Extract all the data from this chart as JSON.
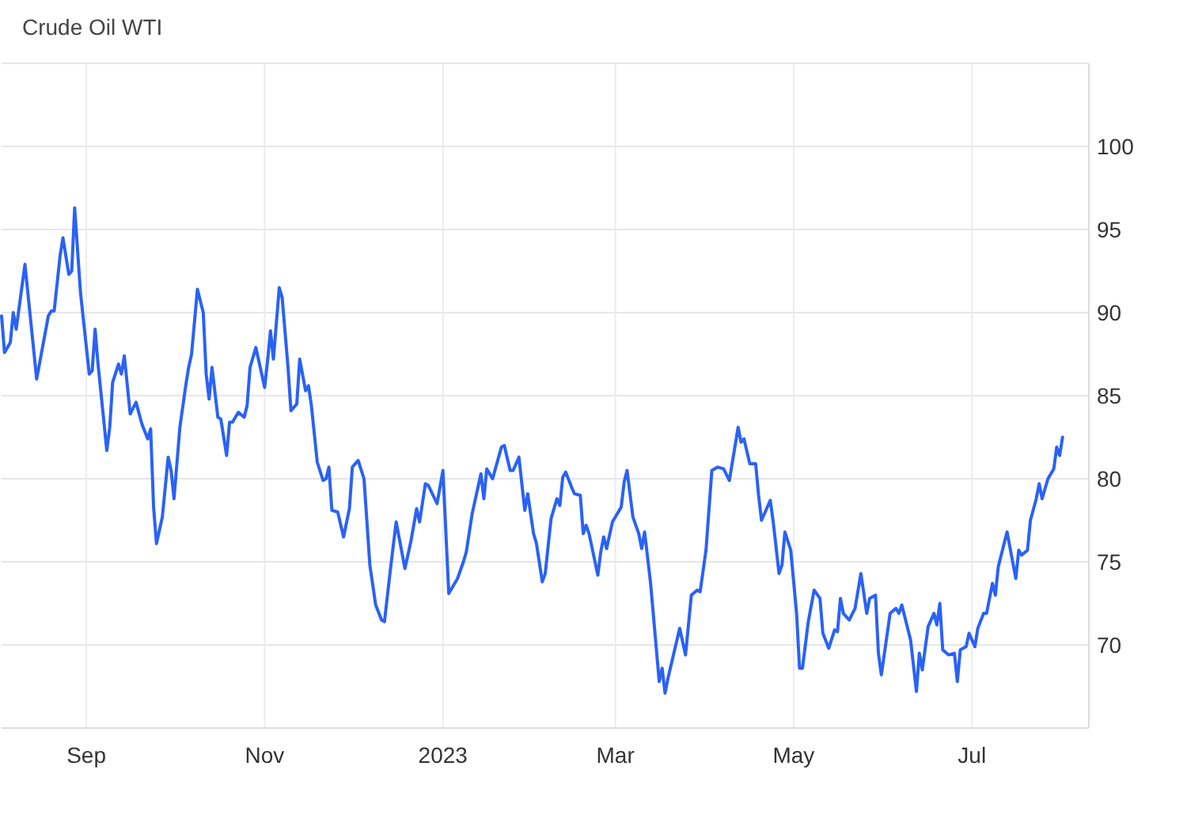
{
  "chart_data": {
    "type": "line",
    "title": "Crude Oil WTI",
    "x": [
      "2022-08-03",
      "2022-08-04",
      "2022-08-06",
      "2022-08-07",
      "2022-08-08",
      "2022-08-11",
      "2022-08-15",
      "2022-08-19",
      "2022-08-20",
      "2022-08-21",
      "2022-08-23",
      "2022-08-24",
      "2022-08-26",
      "2022-08-27",
      "2022-08-28",
      "2022-08-30",
      "2022-09-02",
      "2022-09-03",
      "2022-09-04",
      "2022-09-05",
      "2022-09-08",
      "2022-09-09",
      "2022-09-10",
      "2022-09-12",
      "2022-09-13",
      "2022-09-14",
      "2022-09-16",
      "2022-09-18",
      "2022-09-20",
      "2022-09-22",
      "2022-09-23",
      "2022-09-24",
      "2022-09-25",
      "2022-09-27",
      "2022-09-29",
      "2022-09-30",
      "2022-10-01",
      "2022-10-03",
      "2022-10-05",
      "2022-10-06",
      "2022-10-07",
      "2022-10-09",
      "2022-10-11",
      "2022-10-12",
      "2022-10-13",
      "2022-10-14",
      "2022-10-16",
      "2022-10-17",
      "2022-10-19",
      "2022-10-20",
      "2022-10-21",
      "2022-10-23",
      "2022-10-25",
      "2022-10-26",
      "2022-10-27",
      "2022-10-29",
      "2022-11-01",
      "2022-11-02",
      "2022-11-03",
      "2022-11-04",
      "2022-11-06",
      "2022-11-07",
      "2022-11-09",
      "2022-11-10",
      "2022-11-12",
      "2022-11-13",
      "2022-11-15",
      "2022-11-16",
      "2022-11-17",
      "2022-11-19",
      "2022-11-21",
      "2022-11-22",
      "2022-11-23",
      "2022-11-24",
      "2022-11-26",
      "2022-11-28",
      "2022-11-30",
      "2022-12-01",
      "2022-12-03",
      "2022-12-05",
      "2022-12-07",
      "2022-12-09",
      "2022-12-11",
      "2022-12-12",
      "2022-12-14",
      "2022-12-16",
      "2022-12-19",
      "2022-12-21",
      "2022-12-23",
      "2022-12-24",
      "2022-12-26",
      "2022-12-27",
      "2022-12-30",
      "2023-01-01",
      "2023-01-03",
      "2023-01-06",
      "2023-01-08",
      "2023-01-09",
      "2023-01-11",
      "2023-01-14",
      "2023-01-15",
      "2023-01-16",
      "2023-01-18",
      "2023-01-21",
      "2023-01-22",
      "2023-01-24",
      "2023-01-25",
      "2023-01-27",
      "2023-01-29",
      "2023-01-30",
      "2023-02-01",
      "2023-02-02",
      "2023-02-04",
      "2023-02-05",
      "2023-02-07",
      "2023-02-09",
      "2023-02-10",
      "2023-02-11",
      "2023-02-12",
      "2023-02-14",
      "2023-02-15",
      "2023-02-17",
      "2023-02-18",
      "2023-02-19",
      "2023-02-20",
      "2023-02-23",
      "2023-02-24",
      "2023-02-25",
      "2023-02-26",
      "2023-02-28",
      "2023-03-03",
      "2023-03-04",
      "2023-03-05",
      "2023-03-07",
      "2023-03-09",
      "2023-03-10",
      "2023-03-11",
      "2023-03-13",
      "2023-03-16",
      "2023-03-17",
      "2023-03-18",
      "2023-03-19",
      "2023-03-23",
      "2023-03-25",
      "2023-03-27",
      "2023-03-29",
      "2023-03-30",
      "2023-04-01",
      "2023-04-03",
      "2023-04-05",
      "2023-04-07",
      "2023-04-09",
      "2023-04-12",
      "2023-04-13",
      "2023-04-14",
      "2023-04-16",
      "2023-04-18",
      "2023-04-19",
      "2023-04-20",
      "2023-04-23",
      "2023-04-24",
      "2023-04-26",
      "2023-04-27",
      "2023-04-28",
      "2023-04-30",
      "2023-05-02",
      "2023-05-03",
      "2023-05-04",
      "2023-05-06",
      "2023-05-08",
      "2023-05-10",
      "2023-05-11",
      "2023-05-13",
      "2023-05-15",
      "2023-05-16",
      "2023-05-17",
      "2023-05-18",
      "2023-05-20",
      "2023-05-22",
      "2023-05-24",
      "2023-05-26",
      "2023-05-27",
      "2023-05-29",
      "2023-05-30",
      "2023-05-31",
      "2023-06-03",
      "2023-06-05",
      "2023-06-06",
      "2023-06-07",
      "2023-06-10",
      "2023-06-12",
      "2023-06-13",
      "2023-06-14",
      "2023-06-16",
      "2023-06-18",
      "2023-06-19",
      "2023-06-20",
      "2023-06-21",
      "2023-06-23",
      "2023-06-25",
      "2023-06-26",
      "2023-06-27",
      "2023-06-29",
      "2023-06-30",
      "2023-07-02",
      "2023-07-03",
      "2023-07-05",
      "2023-07-06",
      "2023-07-08",
      "2023-07-09",
      "2023-07-10",
      "2023-07-11",
      "2023-07-13",
      "2023-07-16",
      "2023-07-17",
      "2023-07-18",
      "2023-07-20",
      "2023-07-21",
      "2023-07-23",
      "2023-07-24",
      "2023-07-25",
      "2023-07-27",
      "2023-07-29",
      "2023-07-30",
      "2023-07-31",
      "2023-08-01"
    ],
    "series": [
      {
        "color": "#2a62f5",
        "values": [
          89.8,
          87.6,
          88.2,
          90.0,
          89.0,
          92.9,
          86.0,
          89.8,
          90.1,
          90.1,
          93.4,
          94.5,
          92.3,
          92.5,
          96.3,
          91.2,
          86.3,
          86.5,
          89.0,
          86.9,
          81.7,
          83.1,
          85.8,
          86.9,
          86.3,
          87.4,
          83.9,
          84.6,
          83.3,
          82.4,
          83.0,
          78.3,
          76.1,
          77.7,
          81.3,
          80.5,
          78.8,
          83.1,
          85.6,
          86.7,
          87.5,
          91.4,
          90.0,
          86.3,
          84.8,
          86.7,
          83.7,
          83.6,
          81.4,
          83.4,
          83.4,
          84.0,
          83.7,
          84.4,
          86.7,
          87.9,
          85.5,
          87.1,
          88.9,
          87.2,
          91.5,
          90.9,
          86.7,
          84.1,
          84.5,
          87.2,
          85.3,
          85.6,
          84.4,
          81.0,
          79.9,
          80.0,
          80.7,
          78.1,
          78.0,
          76.5,
          78.2,
          80.7,
          81.1,
          80.0,
          74.8,
          72.4,
          71.5,
          71.4,
          74.5,
          77.4,
          74.6,
          76.2,
          78.2,
          77.4,
          79.7,
          79.6,
          78.5,
          80.5,
          73.1,
          74.0,
          75.0,
          75.6,
          77.9,
          80.3,
          78.8,
          80.6,
          80.0,
          81.9,
          82.0,
          80.5,
          80.5,
          81.3,
          78.1,
          79.1,
          76.7,
          76.1,
          73.8,
          74.3,
          77.6,
          78.8,
          78.4,
          80.1,
          80.4,
          79.5,
          79.1,
          79.0,
          76.7,
          77.2,
          76.7,
          74.2,
          75.6,
          76.5,
          75.8,
          77.4,
          78.3,
          79.8,
          80.5,
          77.7,
          76.7,
          75.8,
          76.8,
          73.8,
          67.8,
          68.6,
          67.1,
          68.0,
          71.0,
          69.4,
          73.0,
          73.3,
          73.2,
          75.7,
          80.5,
          80.7,
          80.6,
          79.9,
          83.1,
          82.2,
          82.4,
          80.9,
          80.9,
          79.0,
          77.5,
          78.7,
          77.4,
          74.3,
          74.8,
          76.8,
          75.7,
          71.9,
          68.6,
          68.6,
          71.4,
          73.3,
          72.8,
          70.7,
          69.8,
          70.9,
          70.8,
          72.8,
          71.9,
          71.5,
          72.2,
          74.3,
          71.9,
          72.8,
          73.0,
          69.5,
          68.2,
          71.9,
          72.2,
          71.9,
          72.4,
          70.3,
          67.2,
          69.5,
          68.5,
          71.1,
          71.9,
          71.2,
          72.5,
          69.7,
          69.4,
          69.5,
          67.8,
          69.7,
          69.9,
          70.7,
          69.9,
          71.0,
          71.9,
          71.9,
          73.7,
          73.0,
          74.7,
          75.4,
          76.8,
          74.0,
          75.7,
          75.4,
          75.7,
          77.5,
          78.8,
          79.7,
          78.8,
          80.0,
          80.6,
          81.9,
          81.4,
          82.5
        ]
      }
    ],
    "xlim": [
      "2022-08-03",
      "2023-08-10"
    ],
    "xticks": [
      {
        "value": "2022-09-01",
        "label": "Sep"
      },
      {
        "value": "2022-11-01",
        "label": "Nov"
      },
      {
        "value": "2023-01-01",
        "label": "2023"
      },
      {
        "value": "2023-03-01",
        "label": "Mar"
      },
      {
        "value": "2023-05-01",
        "label": "May"
      },
      {
        "value": "2023-07-01",
        "label": "Jul"
      }
    ],
    "ylim": [
      65,
      105
    ],
    "yticks": [
      70,
      75,
      80,
      85,
      90,
      95,
      100
    ],
    "grid": true,
    "marker": "none",
    "line_style": "solid"
  }
}
